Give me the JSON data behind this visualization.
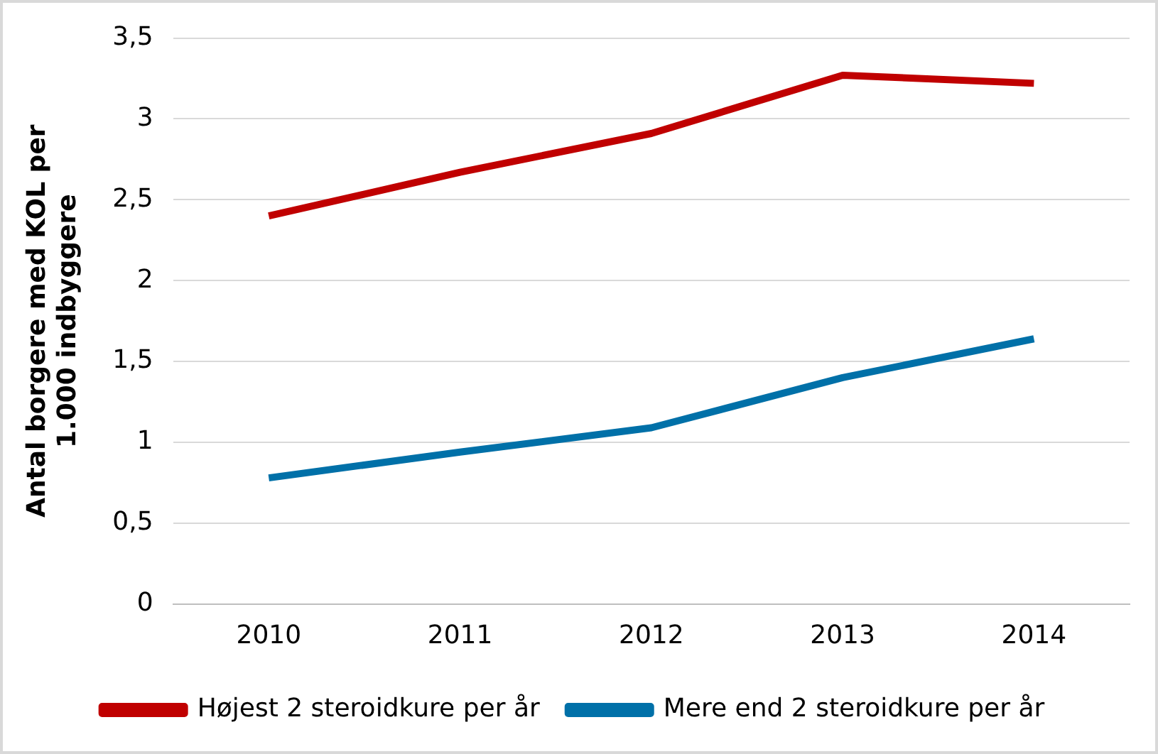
{
  "chart_data": {
    "type": "line",
    "ylabel": "Antal borgere med KOL per 1.000 indbyggere",
    "categories": [
      "2010",
      "2011",
      "2012",
      "2013",
      "2014"
    ],
    "series": [
      {
        "name": "Højest 2 steroidkure per år",
        "color": "#c00000",
        "values": [
          2.4,
          2.67,
          2.91,
          3.27,
          3.22
        ]
      },
      {
        "name": "Mere end 2 steroidkure per år",
        "color": "#0070a8",
        "values": [
          0.78,
          0.94,
          1.09,
          1.4,
          1.64
        ]
      }
    ],
    "ylim": [
      0,
      3.5
    ],
    "yticks": [
      0,
      {
        "value": 0.5,
        "label": "0,5"
      },
      1,
      {
        "value": 1.5,
        "label": "1,5"
      },
      2,
      {
        "value": 2.5,
        "label": "2,5"
      },
      3,
      {
        "value": 3.5,
        "label": "3,5"
      }
    ],
    "grid": "y",
    "legend": "bottom",
    "marker": "none",
    "line_style": "solid"
  }
}
